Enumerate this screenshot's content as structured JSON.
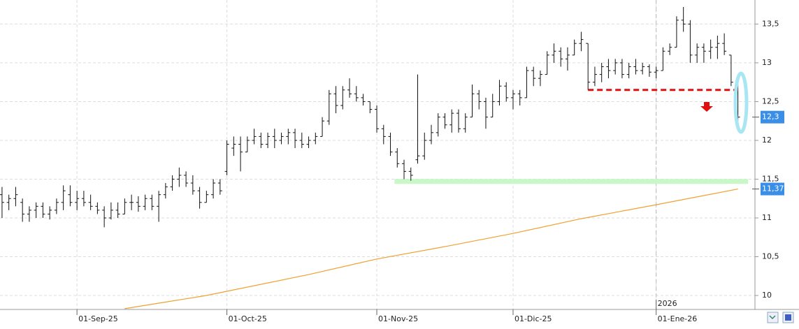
{
  "chart_data": {
    "type": "ohlc",
    "xlim": [
      -0.3,
      110.5
    ],
    "ylim": [
      9.82,
      13.81
    ],
    "yticks": [
      10,
      {
        "value": 10.5,
        "label": "10,5"
      },
      11,
      {
        "value": 11.5,
        "label": "11,5"
      },
      12,
      {
        "value": 12.5,
        "label": "12,5"
      },
      13,
      {
        "value": 13.5,
        "label": "13,5"
      }
    ],
    "xticks": [
      {
        "value": 11,
        "label": "01-Sep-25"
      },
      {
        "value": 33,
        "label": "01-Oct-25"
      },
      {
        "value": 55,
        "label": "01-Nov-25"
      },
      {
        "value": 75,
        "label": "01-Dic-25"
      },
      {
        "value": 96,
        "label": "01-Ene-26"
      }
    ],
    "year_marker": {
      "value": 96,
      "label": "2026"
    },
    "grid": true,
    "bar_color": "#111111",
    "open": [
      11.3,
      11.2,
      11.25,
      11.2,
      11.05,
      11.1,
      11.15,
      11.05,
      11.1,
      11.2,
      11.3,
      11.2,
      11.25,
      11.2,
      11.15,
      11.1,
      11.0,
      11.1,
      11.05,
      11.2,
      11.2,
      11.15,
      11.25,
      11.15,
      11.3,
      11.4,
      11.5,
      11.55,
      11.45,
      11.35,
      11.2,
      11.3,
      11.45,
      11.6,
      11.9,
      11.95,
      11.85,
      12.0,
      12.05,
      11.95,
      12.05,
      12.0,
      12.05,
      12.1,
      12.0,
      11.95,
      12.0,
      12.05,
      12.25,
      12.6,
      12.45,
      12.65,
      12.6,
      12.55,
      12.5,
      12.4,
      12.15,
      12.05,
      11.85,
      11.7,
      11.6,
      11.75,
      11.8,
      12.0,
      12.1,
      12.3,
      12.2,
      12.35,
      12.15,
      12.3,
      12.6,
      12.5,
      12.3,
      12.5,
      12.7,
      12.55,
      12.6,
      12.55,
      12.9,
      12.8,
      12.85,
      13.1,
      13.15,
      13.05,
      13.1,
      13.25,
      13.25,
      12.75,
      12.85,
      12.95,
      12.9,
      13.0,
      12.85,
      12.95,
      12.9,
      12.95,
      12.88,
      12.9,
      13.15,
      13.2,
      13.55,
      13.5,
      13.1,
      13.2,
      13.15,
      13.2,
      13.25,
      13.1,
      12.75
    ],
    "high": [
      11.4,
      11.3,
      11.4,
      11.25,
      11.15,
      11.2,
      11.2,
      11.15,
      11.25,
      11.42,
      11.42,
      11.35,
      11.35,
      11.3,
      11.2,
      11.15,
      11.2,
      11.2,
      11.25,
      11.3,
      11.28,
      11.3,
      11.3,
      11.35,
      11.45,
      11.55,
      11.65,
      11.6,
      11.55,
      11.4,
      11.35,
      11.5,
      11.5,
      12.0,
      12.05,
      12.05,
      12.05,
      12.15,
      12.1,
      12.1,
      12.15,
      12.1,
      12.15,
      12.15,
      12.1,
      12.05,
      12.1,
      12.3,
      12.65,
      12.7,
      12.7,
      12.8,
      12.7,
      12.6,
      12.5,
      12.45,
      12.2,
      12.1,
      11.9,
      11.75,
      11.65,
      12.85,
      12.1,
      12.2,
      12.35,
      12.35,
      12.4,
      12.4,
      12.35,
      12.72,
      12.65,
      12.55,
      12.6,
      12.78,
      12.75,
      12.65,
      12.65,
      12.95,
      12.95,
      12.9,
      13.15,
      13.25,
      13.2,
      13.2,
      13.3,
      13.4,
      13.25,
      12.95,
      13.0,
      13.05,
      13.05,
      13.05,
      13.0,
      13.05,
      13.0,
      12.98,
      12.95,
      13.2,
      13.25,
      13.6,
      13.72,
      13.55,
      13.25,
      13.25,
      13.3,
      13.35,
      13.38,
      13.1,
      12.75
    ],
    "low": [
      11.0,
      11.1,
      11.15,
      10.95,
      10.95,
      11.0,
      11.0,
      10.98,
      11.05,
      11.1,
      11.15,
      11.1,
      11.15,
      11.1,
      11.05,
      10.88,
      10.98,
      11.0,
      11.05,
      11.1,
      11.08,
      11.1,
      11.1,
      10.95,
      11.25,
      11.35,
      11.4,
      11.4,
      11.3,
      11.12,
      11.2,
      11.25,
      11.3,
      11.55,
      11.8,
      11.6,
      11.85,
      11.95,
      11.9,
      11.9,
      11.9,
      11.95,
      11.95,
      11.9,
      11.9,
      11.9,
      11.95,
      12.05,
      12.2,
      12.35,
      12.4,
      12.55,
      12.5,
      12.45,
      12.35,
      12.1,
      11.95,
      11.8,
      11.65,
      11.5,
      11.48,
      11.7,
      11.75,
      11.95,
      12.05,
      12.15,
      12.1,
      12.1,
      12.1,
      12.3,
      12.4,
      12.15,
      12.3,
      12.45,
      12.5,
      12.4,
      12.45,
      12.55,
      12.7,
      12.7,
      12.85,
      13.0,
      12.95,
      12.9,
      13.1,
      13.15,
      12.65,
      12.7,
      12.75,
      12.8,
      12.85,
      12.8,
      12.8,
      12.85,
      12.85,
      12.82,
      12.8,
      12.9,
      13.1,
      13.2,
      13.4,
      13.0,
      13.0,
      13.0,
      13.05,
      13.05,
      13.1,
      12.7,
      12.25
    ],
    "close": [
      11.2,
      11.25,
      11.3,
      11.05,
      11.1,
      11.15,
      11.05,
      11.1,
      11.2,
      11.35,
      11.2,
      11.25,
      11.2,
      11.15,
      11.1,
      11.0,
      11.1,
      11.05,
      11.2,
      11.2,
      11.15,
      11.25,
      11.15,
      11.3,
      11.4,
      11.5,
      11.55,
      11.45,
      11.35,
      11.2,
      11.3,
      11.45,
      11.35,
      11.95,
      11.95,
      11.85,
      12.0,
      12.05,
      11.95,
      12.05,
      12.0,
      12.05,
      12.1,
      12.0,
      11.95,
      12.0,
      12.05,
      12.25,
      12.6,
      12.45,
      12.65,
      12.6,
      12.55,
      12.5,
      12.4,
      12.15,
      12.05,
      11.85,
      11.7,
      11.6,
      11.55,
      11.8,
      12.0,
      12.1,
      12.3,
      12.2,
      12.35,
      12.15,
      12.3,
      12.6,
      12.5,
      12.3,
      12.5,
      12.7,
      12.55,
      12.6,
      12.55,
      12.9,
      12.8,
      12.85,
      13.1,
      13.15,
      13.05,
      13.1,
      13.25,
      13.3,
      12.75,
      12.85,
      12.95,
      12.9,
      13.0,
      12.85,
      12.95,
      12.9,
      12.95,
      12.88,
      12.9,
      13.15,
      13.2,
      13.55,
      13.5,
      13.1,
      13.2,
      13.15,
      13.2,
      13.25,
      13.15,
      12.75,
      12.3
    ],
    "moving_average": {
      "color": "#f0a030",
      "x": [
        18,
        30,
        45,
        55,
        65,
        75,
        85,
        96,
        108
      ],
      "values": [
        9.83,
        10.0,
        10.27,
        10.47,
        10.63,
        10.8,
        10.99,
        11.17,
        11.373
      ]
    },
    "resistance_line": {
      "color": "#e01010",
      "value": 12.65,
      "x": [
        86,
        108
      ]
    },
    "support_line": {
      "color": "#c8f7c8",
      "value": 11.47,
      "x": [
        57.6,
        109.5
      ]
    },
    "price_labels": [
      {
        "value": 12.3,
        "label": "12,3"
      },
      {
        "value": 11.373,
        "label": "11,373"
      }
    ]
  }
}
